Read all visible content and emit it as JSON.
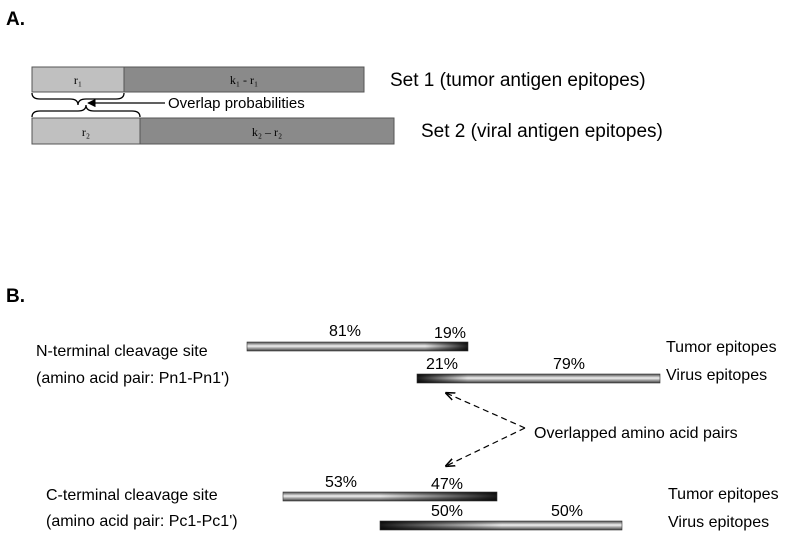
{
  "panel_a": {
    "label": "A.",
    "set1": {
      "left": "r₁",
      "right": "k₁ - r₁",
      "caption": "Set 1 (tumor antigen epitopes)"
    },
    "set2": {
      "left": "r₂",
      "right": "k₂ – r₂",
      "caption": "Set 2 (viral antigen epitopes)"
    },
    "overlap_label": "Overlap probabilities",
    "colors": {
      "light": "#bdbdbd",
      "dark": "#8a8a8a"
    }
  },
  "panel_b": {
    "label": "B.",
    "n_site": {
      "title": "N-terminal cleavage site",
      "subtitle": "(amino acid pair: Pn1-Pn1')",
      "tumor_pcts": [
        "81%",
        "19%"
      ],
      "virus_pcts": [
        "21%",
        "79%"
      ],
      "tumor_label": "Tumor epitopes",
      "virus_label": "Virus epitopes"
    },
    "overlap_label": "Overlapped amino acid pairs",
    "c_site": {
      "title": "C-terminal cleavage site",
      "subtitle": "(amino acid pair: Pc1-Pc1')",
      "tumor_pcts": [
        "53%",
        "47%"
      ],
      "virus_pcts": [
        "50%",
        "50%"
      ],
      "tumor_label": "Tumor epitopes",
      "virus_label": "Virus epitopes"
    }
  }
}
